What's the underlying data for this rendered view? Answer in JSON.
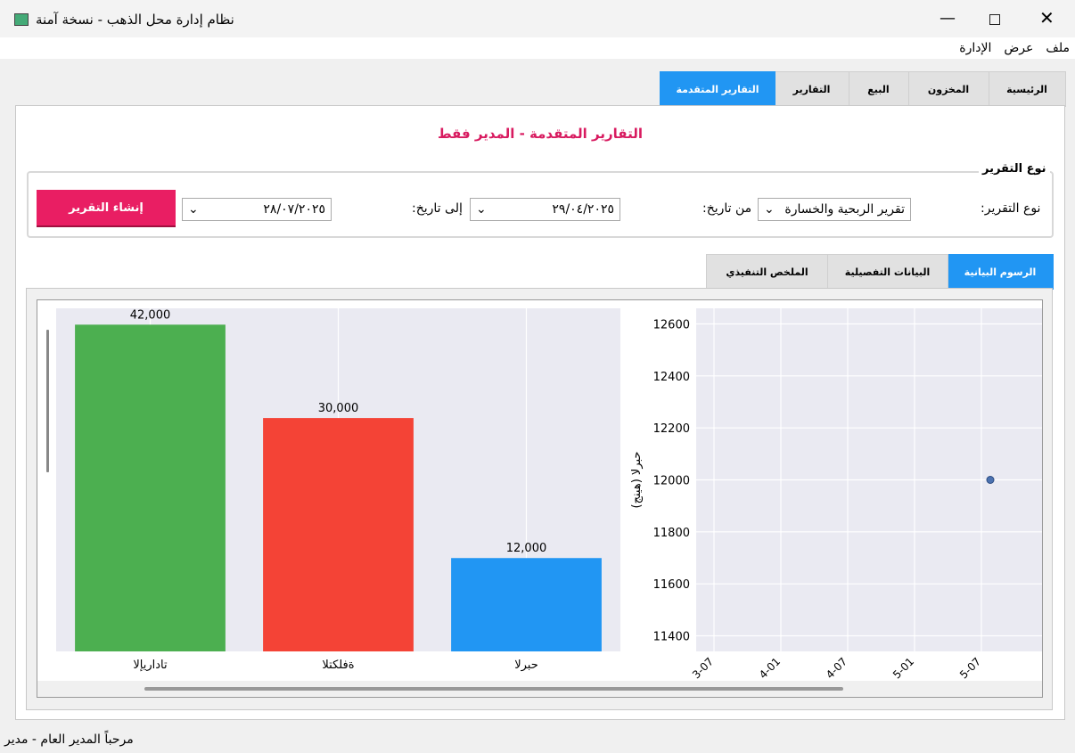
{
  "window": {
    "title": "نظام إدارة محل الذهب - نسخة آمنة"
  },
  "menu": [
    "ملف",
    "عرض",
    "الإدارة"
  ],
  "main_tabs": [
    "الرئيسية",
    "المخزون",
    "البيع",
    "التقارير",
    "التقارير المتقدمة"
  ],
  "page_title": "التقارير المتقدمة - المدير فقط",
  "group": {
    "title": "نوع التقرير",
    "report_type_label": "نوع التقرير:",
    "report_type": "تقرير الربحية والخسارة",
    "from_label": "من تاريخ:",
    "from_date": "٢٩/٠٤/٢٠٢٥",
    "to_label": "إلى تاريخ:",
    "to_date": "٢٨/٠٧/٢٠٢٥",
    "button": "إنشاء التقرير"
  },
  "sub_tabs": [
    "الرسوم البيانية",
    "البيانات التفصيلية",
    "الملخص التنفيذي"
  ],
  "chart_data": [
    {
      "type": "bar",
      "categories": [
        "تاداريإلا",
        "ةفلكتلا",
        "حبرلا"
      ],
      "values": [
        42000,
        30000,
        12000
      ],
      "value_labels": [
        "42,000",
        "30,000",
        "12,000"
      ],
      "colors": [
        "#4caf50",
        "#f44336",
        "#2196f3"
      ],
      "ylim": [
        0,
        44100
      ],
      "grid": true
    },
    {
      "type": "scatter",
      "y_label": "(هينج) حبرلا",
      "categories": [
        "3-07",
        "4-01",
        "4-07",
        "5-01",
        "5-07"
      ],
      "values": [
        null,
        null,
        null,
        null,
        12000
      ],
      "color": "#4c72b0",
      "ylim": [
        11340,
        12660
      ],
      "yticks": [
        11400,
        11600,
        11800,
        12000,
        12200,
        12400,
        12600
      ],
      "grid": true
    }
  ],
  "status": "مرحباً المدير العام - مدير"
}
